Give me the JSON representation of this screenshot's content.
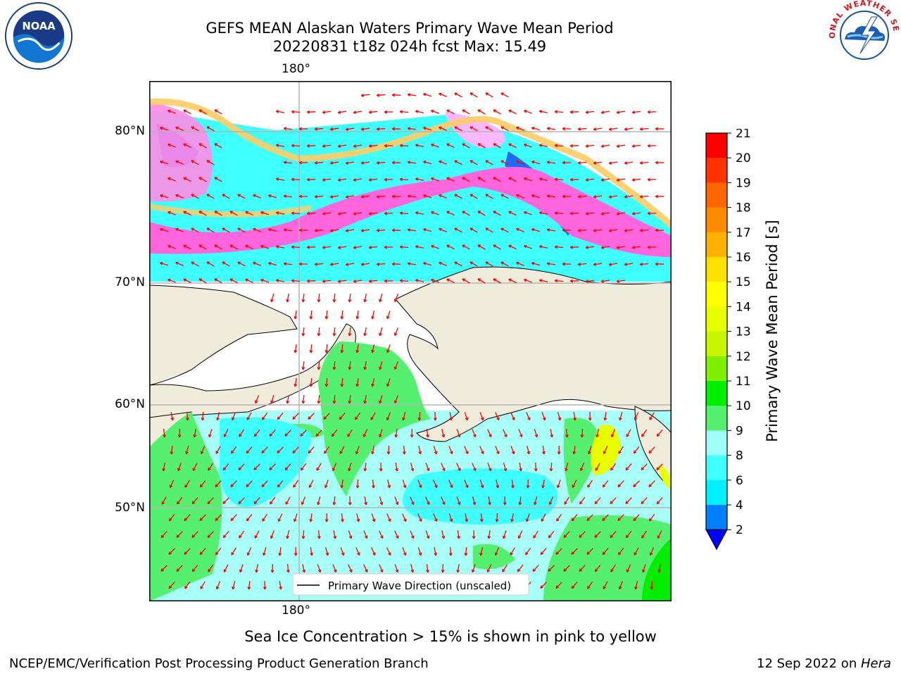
{
  "header": {
    "title_line1": "GEFS MEAN Alaskan Waters Primary Wave Mean Period",
    "title_line2": "20220831 t18z 024h fcst   Max: 15.49"
  },
  "logos": {
    "left": "noaa-logo",
    "right": "national-weather-service-logo",
    "noaa_text": "NOAA",
    "nws_text": "NATIONAL WEATHER SERVICE"
  },
  "map": {
    "lat_labels": [
      "80°N",
      "70°N",
      "60°N",
      "50°N"
    ],
    "lon_label_top": "180°",
    "lon_label_bottom": "180°",
    "legend_text": "Primary Wave Direction (unscaled)",
    "land_color": "#efecdc",
    "arrow_color": "#ff0000"
  },
  "colorbar": {
    "label": "Primary Wave Mean Period [s]",
    "ticks": [
      "21",
      "20",
      "19",
      "18",
      "17",
      "16",
      "15",
      "14",
      "13",
      "12",
      "11",
      "10",
      "9",
      "8",
      "6",
      "4",
      "2"
    ],
    "colors": [
      "#ff0000",
      "#ff3300",
      "#ff6600",
      "#ff8c00",
      "#ffb000",
      "#ffe000",
      "#ffff00",
      "#e8ff00",
      "#c8f500",
      "#80f000",
      "#00ee00",
      "#55f070",
      "#a0fff8",
      "#40ffff",
      "#00f0ff",
      "#0080ff"
    ],
    "extend_color": "#0000ff"
  },
  "notes": {
    "ice": "Sea Ice Concentration > 15% is shown in pink to yellow",
    "footer_left": "NCEP/EMC/Verification Post Processing Product Generation Branch",
    "footer_date": "12 Sep 2022 on ",
    "footer_machine": "Hera"
  }
}
